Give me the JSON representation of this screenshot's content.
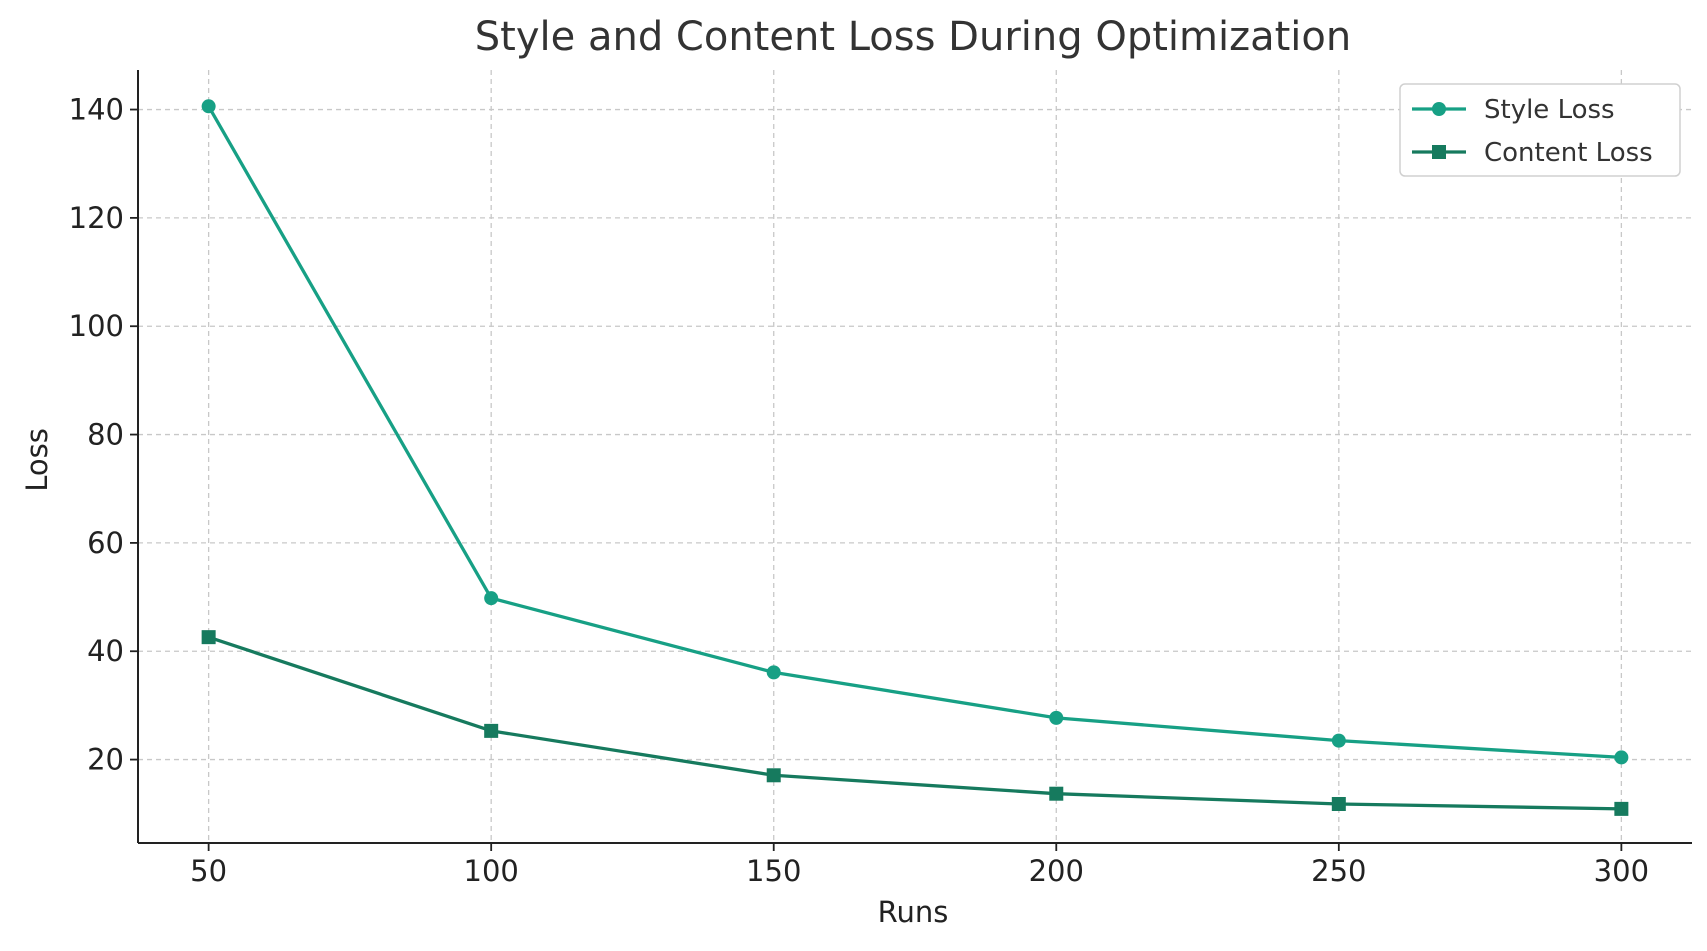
{
  "chart_data": {
    "type": "line",
    "title": "Style and Content Loss During Optimization",
    "xlabel": "Runs",
    "ylabel": "Loss",
    "x": [
      50,
      100,
      150,
      200,
      250,
      300
    ],
    "x_ticks": [
      50,
      100,
      150,
      200,
      250,
      300
    ],
    "y_ticks": [
      20,
      40,
      60,
      80,
      100,
      120,
      140
    ],
    "xlim": [
      37.5,
      312.5
    ],
    "ylim": [
      4.6,
      147.3
    ],
    "grid": true,
    "grid_style": "dashed",
    "legend_position": "top-right",
    "series": [
      {
        "name": "Style Loss",
        "values": [
          140.6,
          49.8,
          36.1,
          27.7,
          23.5,
          20.4
        ],
        "color": "#17a085",
        "marker": "circle"
      },
      {
        "name": "Content Loss",
        "values": [
          42.6,
          25.3,
          17.1,
          13.7,
          11.8,
          10.9
        ],
        "color": "#167a5e",
        "marker": "square"
      }
    ]
  }
}
